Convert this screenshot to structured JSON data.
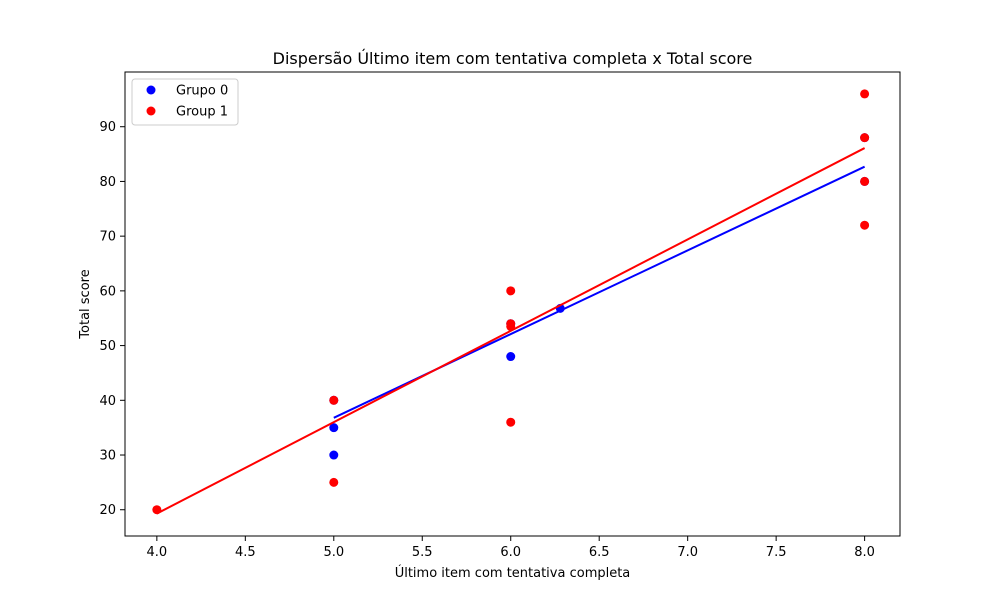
{
  "chart_data": {
    "type": "scatter",
    "title": "Dispersão Último item com tentativa completa x Total score",
    "xlabel": "Último item com tentativa completa",
    "ylabel": "Total score",
    "xlim": [
      3.82,
      8.2
    ],
    "ylim": [
      15.2,
      100
    ],
    "xticks": [
      4.0,
      4.5,
      5.0,
      5.5,
      6.0,
      6.5,
      7.0,
      7.5,
      8.0
    ],
    "xtick_labels": [
      "4.0",
      "4.5",
      "5.0",
      "5.5",
      "6.0",
      "6.5",
      "7.0",
      "7.5",
      "8.0"
    ],
    "yticks": [
      20,
      30,
      40,
      50,
      60,
      70,
      80,
      90
    ],
    "ytick_labels": [
      "20",
      "30",
      "40",
      "50",
      "60",
      "70",
      "80",
      "90"
    ],
    "grid": false,
    "legend_position": "top-left",
    "series": [
      {
        "name": "Grupo 0",
        "color": "#0000ff",
        "points": [
          [
            5,
            40
          ],
          [
            5,
            35
          ],
          [
            5,
            30
          ],
          [
            6,
            54
          ],
          [
            6,
            48
          ],
          [
            6.28,
            56.8
          ],
          [
            8,
            88
          ],
          [
            8,
            80
          ]
        ],
        "fit_line": [
          [
            5,
            36.8
          ],
          [
            8,
            82.7
          ]
        ]
      },
      {
        "name": "Group 1",
        "color": "#ff0000",
        "points": [
          [
            4,
            20
          ],
          [
            5,
            40
          ],
          [
            5,
            25
          ],
          [
            6,
            60
          ],
          [
            6,
            54
          ],
          [
            6,
            53.5
          ],
          [
            6,
            36
          ],
          [
            8,
            96
          ],
          [
            8,
            88
          ],
          [
            8,
            80
          ],
          [
            8,
            72
          ]
        ],
        "fit_line": [
          [
            4,
            19.3
          ],
          [
            8,
            86.1
          ]
        ]
      }
    ]
  }
}
